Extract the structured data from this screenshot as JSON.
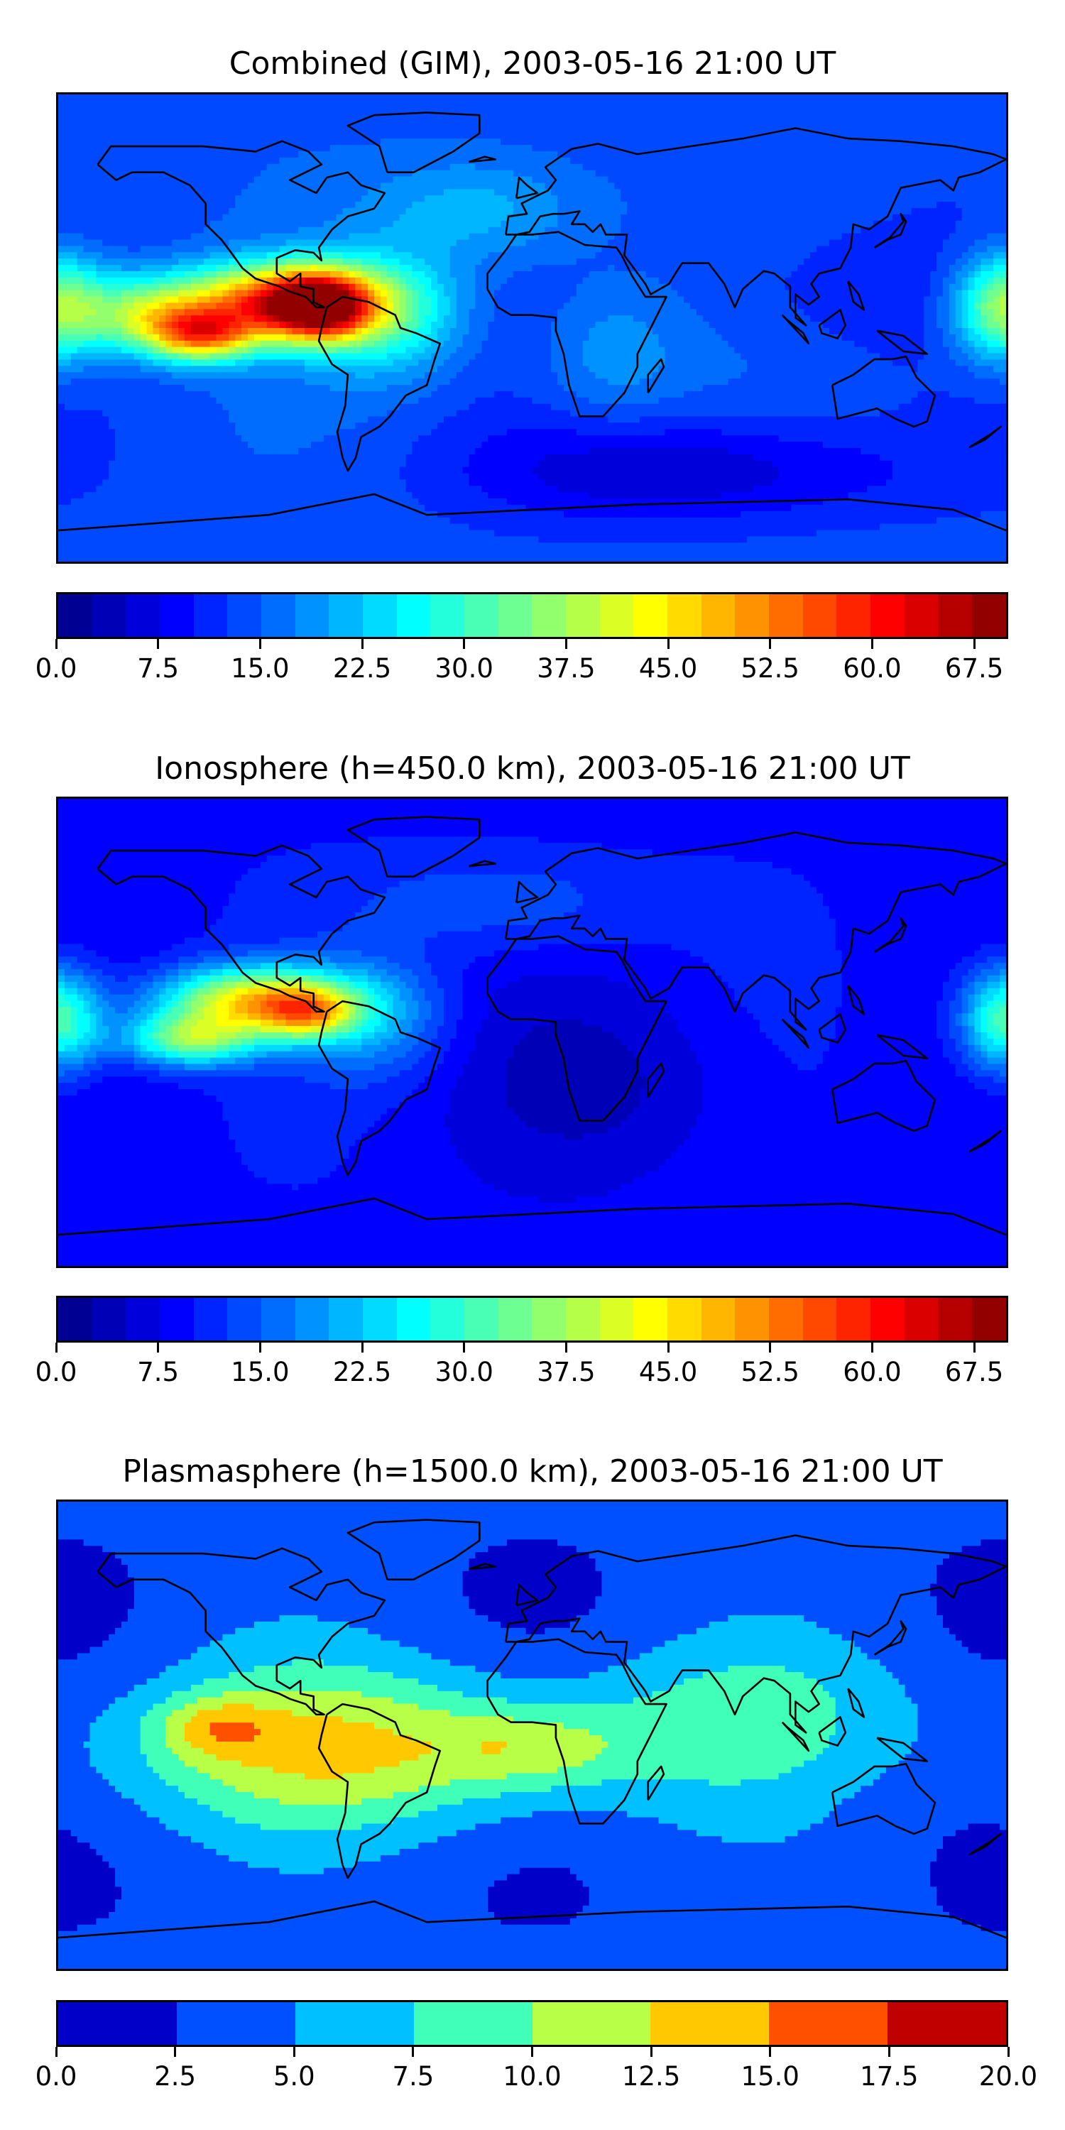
{
  "panels": [
    {
      "title": "Combined (GIM), 2003-05-16 21:00 UT",
      "colorbar": {
        "vmin": 0,
        "vmax": 70,
        "segments": 28,
        "ticks": [
          "0.0",
          "7.5",
          "15.0",
          "22.5",
          "30.0",
          "37.5",
          "45.0",
          "52.5",
          "60.0",
          "67.5"
        ],
        "colormap": "jet"
      },
      "field_base": 14,
      "field_hotspots": [
        {
          "lon": -95,
          "lat": 10,
          "amp": 44,
          "slon": 25,
          "slat": 10
        },
        {
          "lon": -125,
          "lat": -3,
          "amp": 30,
          "slon": 14,
          "slat": 7
        },
        {
          "lon": -80,
          "lat": 8,
          "amp": 30,
          "slon": 12,
          "slat": 9
        },
        {
          "lon": -145,
          "lat": 5,
          "amp": 22,
          "slon": 16,
          "slat": 10
        },
        {
          "lon": -55,
          "lat": 5,
          "amp": 14,
          "slon": 20,
          "slat": 16
        },
        {
          "lon": 180,
          "lat": 8,
          "amp": 26,
          "slon": 14,
          "slat": 14
        },
        {
          "lon": 120,
          "lat": 15,
          "amp": -4,
          "slon": 40,
          "slat": 20
        },
        {
          "lon": 30,
          "lat": -10,
          "amp": 6,
          "slon": 20,
          "slat": 20
        },
        {
          "lon": 60,
          "lat": -55,
          "amp": -9,
          "slon": 60,
          "slat": 15
        },
        {
          "lon": -20,
          "lat": 45,
          "amp": 8,
          "slon": 30,
          "slat": 15
        }
      ]
    },
    {
      "title": "Ionosphere  (h=450.0 km), 2003-05-16 21:00 UT",
      "colorbar": {
        "vmin": 0,
        "vmax": 70,
        "segments": 28,
        "ticks": [
          "0.0",
          "7.5",
          "15.0",
          "22.5",
          "30.0",
          "37.5",
          "45.0",
          "52.5",
          "60.0",
          "67.5"
        ],
        "colormap": "jet"
      },
      "field_base": 9,
      "field_hotspots": [
        {
          "lon": -105,
          "lat": 12,
          "amp": 35,
          "slon": 25,
          "slat": 9
        },
        {
          "lon": -85,
          "lat": 7,
          "amp": 20,
          "slon": 12,
          "slat": 7
        },
        {
          "lon": -130,
          "lat": -3,
          "amp": 24,
          "slon": 18,
          "slat": 7
        },
        {
          "lon": -60,
          "lat": 5,
          "amp": 10,
          "slon": 20,
          "slat": 16
        },
        {
          "lon": 180,
          "lat": 5,
          "amp": 24,
          "slon": 12,
          "slat": 14
        },
        {
          "lon": -10,
          "lat": 50,
          "amp": 6,
          "slon": 40,
          "slat": 15
        },
        {
          "lon": 30,
          "lat": -20,
          "amp": -4,
          "slon": 40,
          "slat": 25
        }
      ]
    },
    {
      "title": "Plasmasphere (h=1500.0 km), 2003-05-16 21:00 UT",
      "colorbar": {
        "vmin": 0,
        "vmax": 20,
        "segments": 8,
        "ticks": [
          "0.0",
          "2.5",
          "5.0",
          "7.5",
          "10.0",
          "12.5",
          "15.0",
          "17.5",
          "20.0"
        ],
        "colormap": "jet8"
      },
      "field_base": 3,
      "field_hotspots": [
        {
          "lon": -60,
          "lat": -5,
          "amp": 9,
          "slon": 80,
          "slat": 22
        },
        {
          "lon": -120,
          "lat": 3,
          "amp": 5,
          "slon": 15,
          "slat": 8
        },
        {
          "lon": 0,
          "lat": -5,
          "amp": 4,
          "slon": 25,
          "slat": 10
        },
        {
          "lon": 90,
          "lat": 10,
          "amp": 3,
          "slon": 50,
          "slat": 20
        }
      ]
    }
  ],
  "colors": {
    "jet8": [
      "#0000c8",
      "#0050ff",
      "#00c0ff",
      "#40ffb8",
      "#b8ff48",
      "#ffc800",
      "#ff5000",
      "#c00000"
    ]
  }
}
